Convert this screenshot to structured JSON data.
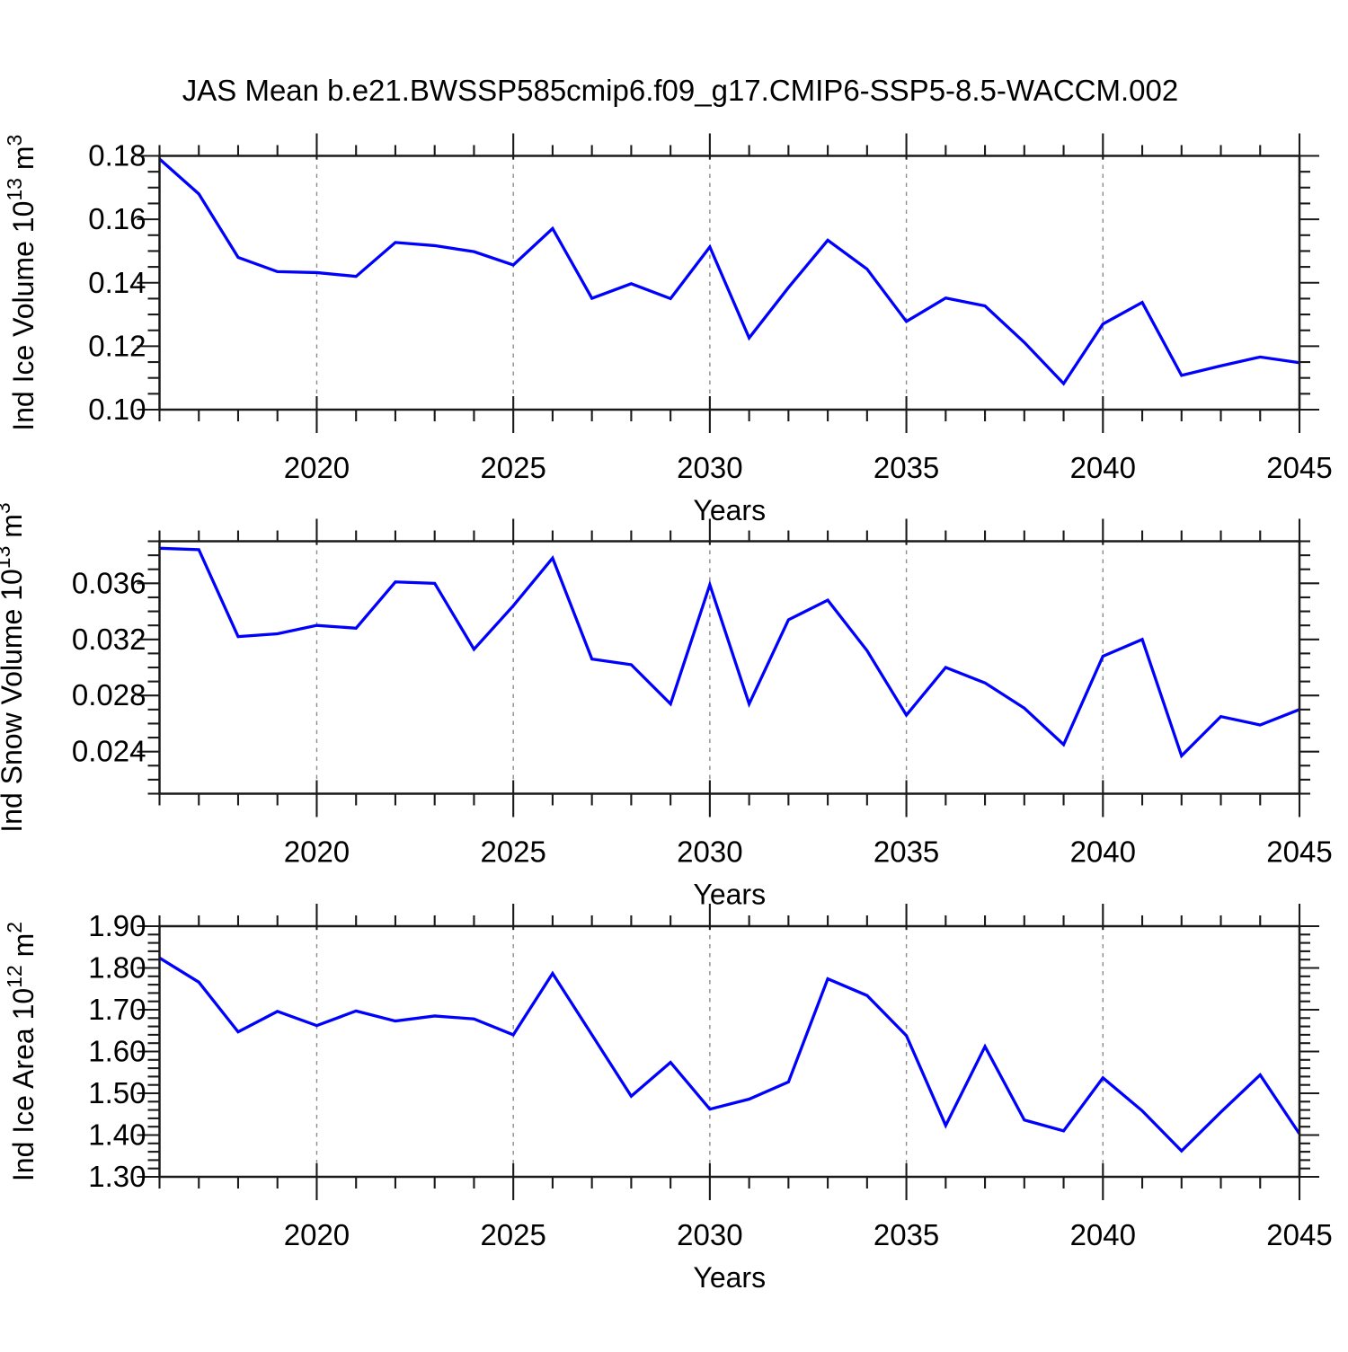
{
  "title": "JAS Mean b.e21.BWSSP585cmip6.f09_g17.CMIP6-SSP5-8.5-WACCM.002",
  "figure": {
    "line_color": "#0000ff",
    "axis_color": "#1a1a1a",
    "grid_color": "#8c8c8c",
    "background": "#ffffff"
  },
  "x_axis": {
    "label": "Years",
    "xlim": [
      2016,
      2045
    ],
    "major_ticks": [
      2020,
      2025,
      2030,
      2035,
      2040,
      2045
    ],
    "major_tick_labels": [
      "2020",
      "2025",
      "2030",
      "2035",
      "2040",
      "2045"
    ],
    "minor_step": 1,
    "gridlines": [
      2020,
      2025,
      2030,
      2035,
      2040
    ]
  },
  "years": [
    2016,
    2017,
    2018,
    2019,
    2020,
    2021,
    2022,
    2023,
    2024,
    2025,
    2026,
    2027,
    2028,
    2029,
    2030,
    2031,
    2032,
    2033,
    2034,
    2035,
    2036,
    2037,
    2038,
    2039,
    2040,
    2041,
    2042,
    2043,
    2044,
    2045
  ],
  "chart_data": [
    {
      "type": "line",
      "title": "",
      "xlabel": "Years",
      "ylabel_text": "Ind Ice Volume 10^13 m^3",
      "ylabel_parts": [
        {
          "t": "Ind Ice Volume 10"
        },
        {
          "t": "13",
          "sup": true
        },
        {
          "t": " m"
        },
        {
          "t": "3",
          "sup": true
        }
      ],
      "ylim": [
        0.1,
        0.18
      ],
      "ytick_values": [
        0.1,
        0.12,
        0.14,
        0.16,
        0.18
      ],
      "ytick_labels": [
        "0.10",
        "0.12",
        "0.14",
        "0.16",
        "0.18"
      ],
      "ytick_minor_step": 0.005,
      "x": [
        2016,
        2017,
        2018,
        2019,
        2020,
        2021,
        2022,
        2023,
        2024,
        2025,
        2026,
        2027,
        2028,
        2029,
        2030,
        2031,
        2032,
        2033,
        2034,
        2035,
        2036,
        2037,
        2038,
        2039,
        2040,
        2041,
        2042,
        2043,
        2044,
        2045
      ],
      "values": [
        0.179,
        0.168,
        0.148,
        0.1435,
        0.1432,
        0.142,
        0.1527,
        0.1517,
        0.1498,
        0.1456,
        0.1571,
        0.1351,
        0.1397,
        0.135,
        0.1513,
        0.1226,
        0.1385,
        0.1534,
        0.1443,
        0.1278,
        0.1352,
        0.1327,
        0.1212,
        0.1082,
        0.127,
        0.1338,
        0.1108,
        0.1138,
        0.1166,
        0.1148
      ]
    },
    {
      "type": "line",
      "title": "",
      "xlabel": "Years",
      "ylabel_text": "Ind Snow Volume 10^13 m^3",
      "ylabel_parts": [
        {
          "t": "Ind Snow Volume 10"
        },
        {
          "t": "13",
          "sup": true
        },
        {
          "t": " m"
        },
        {
          "t": "3",
          "sup": true
        }
      ],
      "ylim": [
        0.021,
        0.039
      ],
      "ytick_values": [
        0.024,
        0.028,
        0.032,
        0.036
      ],
      "ytick_labels": [
        "0.024",
        "0.028",
        "0.032",
        "0.036"
      ],
      "ytick_minor_step": 0.001,
      "x": [
        2016,
        2017,
        2018,
        2019,
        2020,
        2021,
        2022,
        2023,
        2024,
        2025,
        2026,
        2027,
        2028,
        2029,
        2030,
        2031,
        2032,
        2033,
        2034,
        2035,
        2036,
        2037,
        2038,
        2039,
        2040,
        2041,
        2042,
        2043,
        2044,
        2045
      ],
      "values": [
        0.0385,
        0.0384,
        0.0322,
        0.0324,
        0.033,
        0.0328,
        0.0361,
        0.036,
        0.0313,
        0.0344,
        0.0378,
        0.0306,
        0.0302,
        0.0274,
        0.0359,
        0.0274,
        0.0334,
        0.0348,
        0.0312,
        0.0266,
        0.03,
        0.0289,
        0.0271,
        0.0245,
        0.0308,
        0.032,
        0.0237,
        0.0265,
        0.0259,
        0.027
      ]
    },
    {
      "type": "line",
      "title": "",
      "xlabel": "Years",
      "ylabel_text": "Ind Ice Area 10^12 m^2",
      "ylabel_parts": [
        {
          "t": "Ind Ice Area 10"
        },
        {
          "t": "12",
          "sup": true
        },
        {
          "t": " m"
        },
        {
          "t": "2",
          "sup": true
        }
      ],
      "ylim": [
        1.3,
        1.9
      ],
      "ytick_values": [
        1.3,
        1.4,
        1.5,
        1.6,
        1.7,
        1.8,
        1.9
      ],
      "ytick_labels": [
        "1.30",
        "1.40",
        "1.50",
        "1.60",
        "1.70",
        "1.80",
        "1.90"
      ],
      "ytick_minor_step": 0.02,
      "x": [
        2016,
        2017,
        2018,
        2019,
        2020,
        2021,
        2022,
        2023,
        2024,
        2025,
        2026,
        2027,
        2028,
        2029,
        2030,
        2031,
        2032,
        2033,
        2034,
        2035,
        2036,
        2037,
        2038,
        2039,
        2040,
        2041,
        2042,
        2043,
        2044,
        2045
      ],
      "values": [
        1.824,
        1.766,
        1.647,
        1.696,
        1.662,
        1.697,
        1.673,
        1.685,
        1.678,
        1.64,
        1.787,
        1.64,
        1.493,
        1.574,
        1.462,
        1.486,
        1.527,
        1.774,
        1.734,
        1.638,
        1.423,
        1.612,
        1.436,
        1.41,
        1.537,
        1.458,
        1.362,
        1.455,
        1.544,
        1.403
      ]
    }
  ]
}
